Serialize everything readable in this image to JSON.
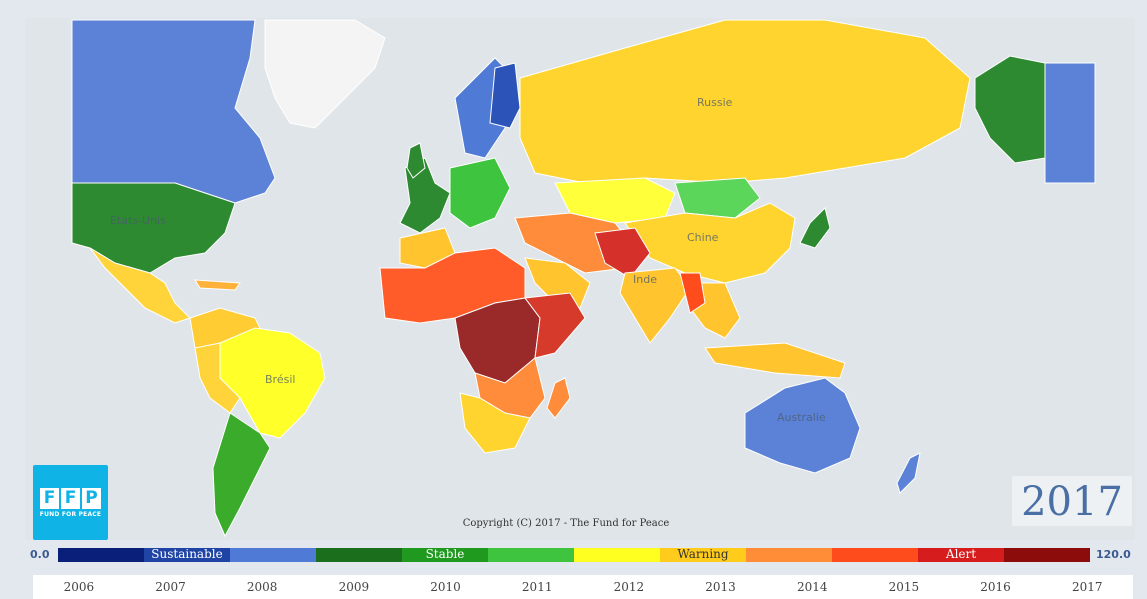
{
  "map": {
    "labels": {
      "russia": "Russie",
      "usa": "Etats-Unis",
      "china": "Chine",
      "india": "Inde",
      "brazil": "Brésil",
      "australia": "Australie"
    }
  },
  "branding": {
    "logo_letters": [
      "F",
      "F",
      "P"
    ],
    "logo_subtitle": "FUND FOR PEACE",
    "copyright": "Copyright (C) 2017 - The Fund for Peace"
  },
  "current_year": "2017",
  "legend": {
    "min": "0.0",
    "max": "120.0",
    "colors": [
      "#0a1f7a",
      "#1f44a6",
      "#4f7ad6",
      "#1b6e1b",
      "#1f9a1f",
      "#3ec43e",
      "#ffff20",
      "#ffcc1c",
      "#ff8c36",
      "#ff4c1c",
      "#d61c1c",
      "#8c0c0c"
    ],
    "categories": [
      {
        "label": "Sustainable",
        "segment": 1
      },
      {
        "label": "Stable",
        "segment": 4
      },
      {
        "label": "Warning",
        "segment": 7
      },
      {
        "label": "Alert",
        "segment": 10
      }
    ]
  },
  "timeline": {
    "years": [
      "2006",
      "2007",
      "2008",
      "2009",
      "2010",
      "2011",
      "2012",
      "2013",
      "2014",
      "2015",
      "2016",
      "2017"
    ]
  }
}
